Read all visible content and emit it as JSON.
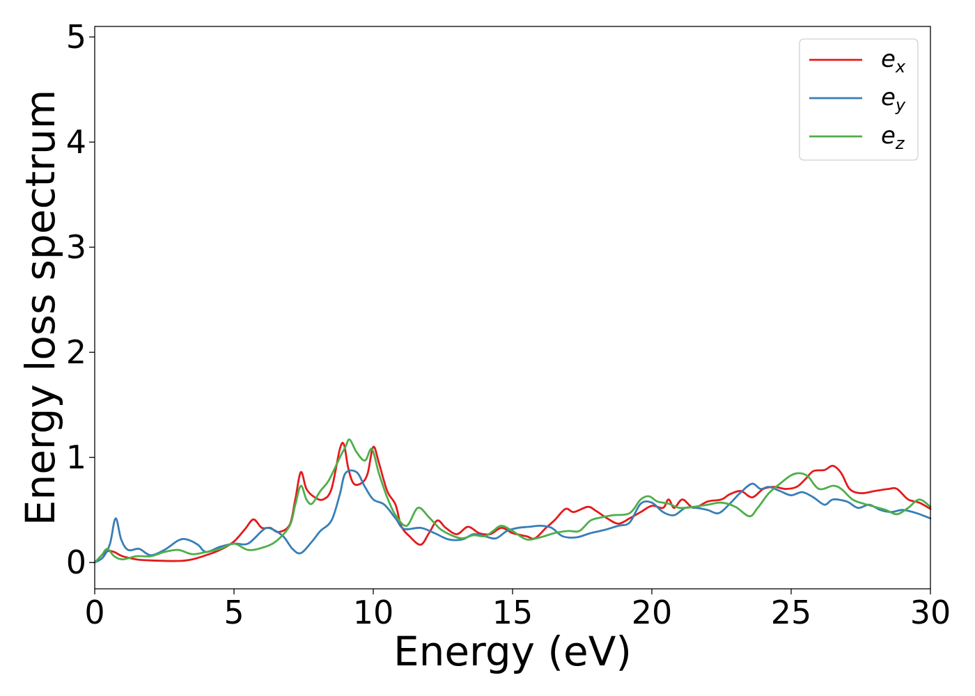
{
  "chart_data": {
    "type": "line",
    "title": "",
    "xlabel": "Energy (eV)",
    "ylabel": "Energy loss spectrum",
    "xlim": [
      0,
      30
    ],
    "ylim": [
      -0.25,
      5.1
    ],
    "xticks": [
      0,
      5,
      10,
      15,
      20,
      25,
      30
    ],
    "yticks": [
      0,
      1,
      2,
      3,
      4,
      5
    ],
    "grid": false,
    "legend_position": "top-right",
    "series": [
      {
        "name": "e",
        "subscript": "x",
        "color": "#e41a1c",
        "points": [
          [
            0,
            0
          ],
          [
            0.3,
            0.08
          ],
          [
            0.5,
            0.11
          ],
          [
            0.7,
            0.1
          ],
          [
            1.0,
            0.06
          ],
          [
            1.5,
            0.03
          ],
          [
            2.0,
            0.02
          ],
          [
            3.0,
            0.015
          ],
          [
            3.5,
            0.03
          ],
          [
            4.0,
            0.07
          ],
          [
            4.5,
            0.12
          ],
          [
            5.0,
            0.2
          ],
          [
            5.4,
            0.32
          ],
          [
            5.7,
            0.41
          ],
          [
            6.0,
            0.33
          ],
          [
            6.3,
            0.33
          ],
          [
            6.6,
            0.29
          ],
          [
            7.0,
            0.36
          ],
          [
            7.2,
            0.6
          ],
          [
            7.4,
            0.86
          ],
          [
            7.6,
            0.7
          ],
          [
            7.9,
            0.62
          ],
          [
            8.2,
            0.6
          ],
          [
            8.5,
            0.7
          ],
          [
            8.8,
            1.08
          ],
          [
            8.95,
            1.12
          ],
          [
            9.1,
            0.9
          ],
          [
            9.3,
            0.75
          ],
          [
            9.6,
            0.76
          ],
          [
            9.8,
            0.85
          ],
          [
            10.0,
            1.1
          ],
          [
            10.2,
            0.95
          ],
          [
            10.5,
            0.68
          ],
          [
            10.8,
            0.55
          ],
          [
            11.0,
            0.35
          ],
          [
            11.3,
            0.25
          ],
          [
            11.7,
            0.17
          ],
          [
            12.0,
            0.28
          ],
          [
            12.3,
            0.4
          ],
          [
            12.6,
            0.33
          ],
          [
            13.0,
            0.27
          ],
          [
            13.4,
            0.34
          ],
          [
            13.8,
            0.28
          ],
          [
            14.2,
            0.27
          ],
          [
            14.6,
            0.33
          ],
          [
            15.0,
            0.28
          ],
          [
            15.5,
            0.25
          ],
          [
            15.8,
            0.23
          ],
          [
            16.2,
            0.33
          ],
          [
            16.5,
            0.4
          ],
          [
            16.9,
            0.51
          ],
          [
            17.2,
            0.48
          ],
          [
            17.7,
            0.53
          ],
          [
            18.0,
            0.49
          ],
          [
            18.4,
            0.42
          ],
          [
            18.8,
            0.37
          ],
          [
            19.2,
            0.42
          ],
          [
            19.6,
            0.48
          ],
          [
            20.0,
            0.54
          ],
          [
            20.4,
            0.52
          ],
          [
            20.6,
            0.6
          ],
          [
            20.8,
            0.52
          ],
          [
            21.1,
            0.6
          ],
          [
            21.5,
            0.52
          ],
          [
            22.0,
            0.58
          ],
          [
            22.5,
            0.6
          ],
          [
            22.8,
            0.65
          ],
          [
            23.2,
            0.68
          ],
          [
            23.6,
            0.62
          ],
          [
            24.0,
            0.7
          ],
          [
            24.4,
            0.72
          ],
          [
            24.8,
            0.7
          ],
          [
            25.2,
            0.72
          ],
          [
            25.5,
            0.79
          ],
          [
            25.8,
            0.87
          ],
          [
            26.2,
            0.88
          ],
          [
            26.5,
            0.92
          ],
          [
            26.8,
            0.85
          ],
          [
            27.1,
            0.7
          ],
          [
            27.5,
            0.66
          ],
          [
            28.0,
            0.68
          ],
          [
            28.5,
            0.7
          ],
          [
            28.8,
            0.7
          ],
          [
            29.2,
            0.6
          ],
          [
            29.6,
            0.57
          ],
          [
            30.0,
            0.51
          ]
        ]
      },
      {
        "name": "e",
        "subscript": "y",
        "color": "#377eb8",
        "points": [
          [
            0,
            0
          ],
          [
            0.3,
            0.05
          ],
          [
            0.55,
            0.18
          ],
          [
            0.75,
            0.42
          ],
          [
            0.95,
            0.22
          ],
          [
            1.2,
            0.12
          ],
          [
            1.6,
            0.13
          ],
          [
            2.0,
            0.07
          ],
          [
            2.5,
            0.12
          ],
          [
            3.0,
            0.21
          ],
          [
            3.3,
            0.22
          ],
          [
            3.7,
            0.17
          ],
          [
            4.0,
            0.1
          ],
          [
            4.5,
            0.15
          ],
          [
            5.0,
            0.18
          ],
          [
            5.5,
            0.18
          ],
          [
            6.0,
            0.3
          ],
          [
            6.2,
            0.33
          ],
          [
            6.5,
            0.3
          ],
          [
            6.8,
            0.24
          ],
          [
            7.1,
            0.13
          ],
          [
            7.4,
            0.09
          ],
          [
            7.8,
            0.2
          ],
          [
            8.1,
            0.3
          ],
          [
            8.5,
            0.4
          ],
          [
            8.8,
            0.65
          ],
          [
            9.0,
            0.85
          ],
          [
            9.4,
            0.86
          ],
          [
            9.7,
            0.72
          ],
          [
            10.0,
            0.6
          ],
          [
            10.4,
            0.55
          ],
          [
            10.8,
            0.42
          ],
          [
            11.1,
            0.32
          ],
          [
            11.7,
            0.33
          ],
          [
            12.2,
            0.28
          ],
          [
            12.7,
            0.22
          ],
          [
            13.2,
            0.22
          ],
          [
            13.6,
            0.27
          ],
          [
            14.0,
            0.25
          ],
          [
            14.4,
            0.23
          ],
          [
            14.8,
            0.3
          ],
          [
            15.2,
            0.33
          ],
          [
            15.6,
            0.34
          ],
          [
            16.0,
            0.35
          ],
          [
            16.4,
            0.33
          ],
          [
            16.8,
            0.25
          ],
          [
            17.3,
            0.24
          ],
          [
            17.8,
            0.28
          ],
          [
            18.3,
            0.31
          ],
          [
            18.8,
            0.35
          ],
          [
            19.2,
            0.38
          ],
          [
            19.6,
            0.56
          ],
          [
            20.0,
            0.57
          ],
          [
            20.4,
            0.48
          ],
          [
            20.8,
            0.45
          ],
          [
            21.2,
            0.52
          ],
          [
            21.6,
            0.52
          ],
          [
            22.0,
            0.5
          ],
          [
            22.4,
            0.47
          ],
          [
            22.8,
            0.56
          ],
          [
            23.2,
            0.67
          ],
          [
            23.6,
            0.75
          ],
          [
            23.9,
            0.7
          ],
          [
            24.2,
            0.72
          ],
          [
            24.6,
            0.68
          ],
          [
            25.0,
            0.64
          ],
          [
            25.4,
            0.67
          ],
          [
            25.8,
            0.62
          ],
          [
            26.2,
            0.55
          ],
          [
            26.5,
            0.6
          ],
          [
            27.0,
            0.58
          ],
          [
            27.4,
            0.52
          ],
          [
            27.8,
            0.55
          ],
          [
            28.2,
            0.5
          ],
          [
            28.6,
            0.48
          ],
          [
            29.0,
            0.5
          ],
          [
            29.5,
            0.47
          ],
          [
            30.0,
            0.42
          ]
        ]
      },
      {
        "name": "e",
        "subscript": "z",
        "color": "#4daf4a",
        "points": [
          [
            0,
            0
          ],
          [
            0.25,
            0.07
          ],
          [
            0.45,
            0.13
          ],
          [
            0.7,
            0.06
          ],
          [
            1.0,
            0.03
          ],
          [
            1.5,
            0.06
          ],
          [
            2.0,
            0.06
          ],
          [
            2.5,
            0.1
          ],
          [
            3.0,
            0.12
          ],
          [
            3.5,
            0.08
          ],
          [
            4.0,
            0.1
          ],
          [
            4.5,
            0.13
          ],
          [
            5.0,
            0.18
          ],
          [
            5.5,
            0.12
          ],
          [
            6.0,
            0.14
          ],
          [
            6.5,
            0.2
          ],
          [
            7.0,
            0.35
          ],
          [
            7.2,
            0.55
          ],
          [
            7.4,
            0.73
          ],
          [
            7.6,
            0.6
          ],
          [
            7.8,
            0.56
          ],
          [
            8.1,
            0.68
          ],
          [
            8.4,
            0.78
          ],
          [
            8.8,
            1.0
          ],
          [
            9.0,
            1.1
          ],
          [
            9.15,
            1.17
          ],
          [
            9.4,
            1.05
          ],
          [
            9.7,
            0.97
          ],
          [
            9.95,
            1.08
          ],
          [
            10.2,
            0.85
          ],
          [
            10.5,
            0.62
          ],
          [
            10.8,
            0.45
          ],
          [
            11.2,
            0.35
          ],
          [
            11.6,
            0.52
          ],
          [
            12.0,
            0.43
          ],
          [
            12.4,
            0.32
          ],
          [
            12.8,
            0.26
          ],
          [
            13.2,
            0.23
          ],
          [
            13.6,
            0.26
          ],
          [
            14.0,
            0.25
          ],
          [
            14.3,
            0.3
          ],
          [
            14.6,
            0.35
          ],
          [
            15.0,
            0.3
          ],
          [
            15.5,
            0.22
          ],
          [
            16.0,
            0.24
          ],
          [
            16.5,
            0.28
          ],
          [
            17.0,
            0.3
          ],
          [
            17.4,
            0.3
          ],
          [
            17.8,
            0.4
          ],
          [
            18.2,
            0.43
          ],
          [
            18.6,
            0.45
          ],
          [
            19.2,
            0.47
          ],
          [
            19.6,
            0.6
          ],
          [
            19.9,
            0.63
          ],
          [
            20.2,
            0.58
          ],
          [
            20.6,
            0.56
          ],
          [
            21.0,
            0.52
          ],
          [
            21.5,
            0.53
          ],
          [
            22.0,
            0.55
          ],
          [
            22.5,
            0.57
          ],
          [
            23.0,
            0.53
          ],
          [
            23.5,
            0.44
          ],
          [
            23.8,
            0.52
          ],
          [
            24.2,
            0.66
          ],
          [
            24.6,
            0.75
          ],
          [
            25.0,
            0.83
          ],
          [
            25.3,
            0.85
          ],
          [
            25.6,
            0.82
          ],
          [
            26.0,
            0.7
          ],
          [
            26.5,
            0.73
          ],
          [
            26.8,
            0.7
          ],
          [
            27.2,
            0.6
          ],
          [
            27.6,
            0.56
          ],
          [
            28.0,
            0.53
          ],
          [
            28.4,
            0.5
          ],
          [
            28.8,
            0.46
          ],
          [
            29.2,
            0.52
          ],
          [
            29.6,
            0.6
          ],
          [
            30.0,
            0.53
          ]
        ]
      }
    ]
  }
}
